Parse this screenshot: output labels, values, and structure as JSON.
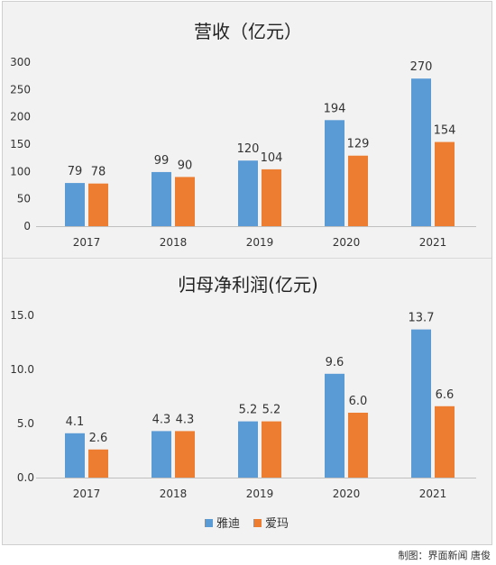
{
  "chart_data": [
    {
      "type": "bar",
      "title": "营收（亿元）",
      "categories": [
        "2017",
        "2018",
        "2019",
        "2020",
        "2021"
      ],
      "series": [
        {
          "name": "雅迪",
          "values": [
            79,
            99,
            120,
            194,
            270
          ],
          "labels": [
            "79",
            "99",
            "120",
            "194",
            "270"
          ]
        },
        {
          "name": "爱玛",
          "values": [
            78,
            90,
            104,
            129,
            154
          ],
          "labels": [
            "78",
            "90",
            "104",
            "129",
            "154"
          ]
        }
      ],
      "ylim": [
        0,
        300
      ],
      "yticks": [
        "0",
        "50",
        "100",
        "150",
        "200",
        "250",
        "300"
      ],
      "ytick_values": [
        0,
        50,
        100,
        150,
        200,
        250,
        300
      ],
      "grid": false,
      "legend": "none"
    },
    {
      "type": "bar",
      "title": "归母净利润(亿元)",
      "categories": [
        "2017",
        "2018",
        "2019",
        "2020",
        "2021"
      ],
      "series": [
        {
          "name": "雅迪",
          "values": [
            4.1,
            4.3,
            5.2,
            9.6,
            13.7
          ],
          "labels": [
            "4.1",
            "4.3",
            "5.2",
            "9.6",
            "13.7"
          ]
        },
        {
          "name": "爱玛",
          "values": [
            2.6,
            4.3,
            5.2,
            6.0,
            6.6
          ],
          "labels": [
            "2.6",
            "4.3",
            "5.2",
            "6.0",
            "6.6"
          ]
        }
      ],
      "ylim": [
        0,
        15
      ],
      "yticks": [
        "0.0",
        "5.0",
        "10.0",
        "15.0"
      ],
      "ytick_values": [
        0,
        5,
        10,
        15
      ],
      "grid": false,
      "legend": "bottom-center"
    }
  ],
  "legend": [
    {
      "name": "雅迪",
      "color": "#5b9bd5"
    },
    {
      "name": "爱玛",
      "color": "#ed7d31"
    }
  ],
  "credit": "制图：界面新闻 唐俊"
}
